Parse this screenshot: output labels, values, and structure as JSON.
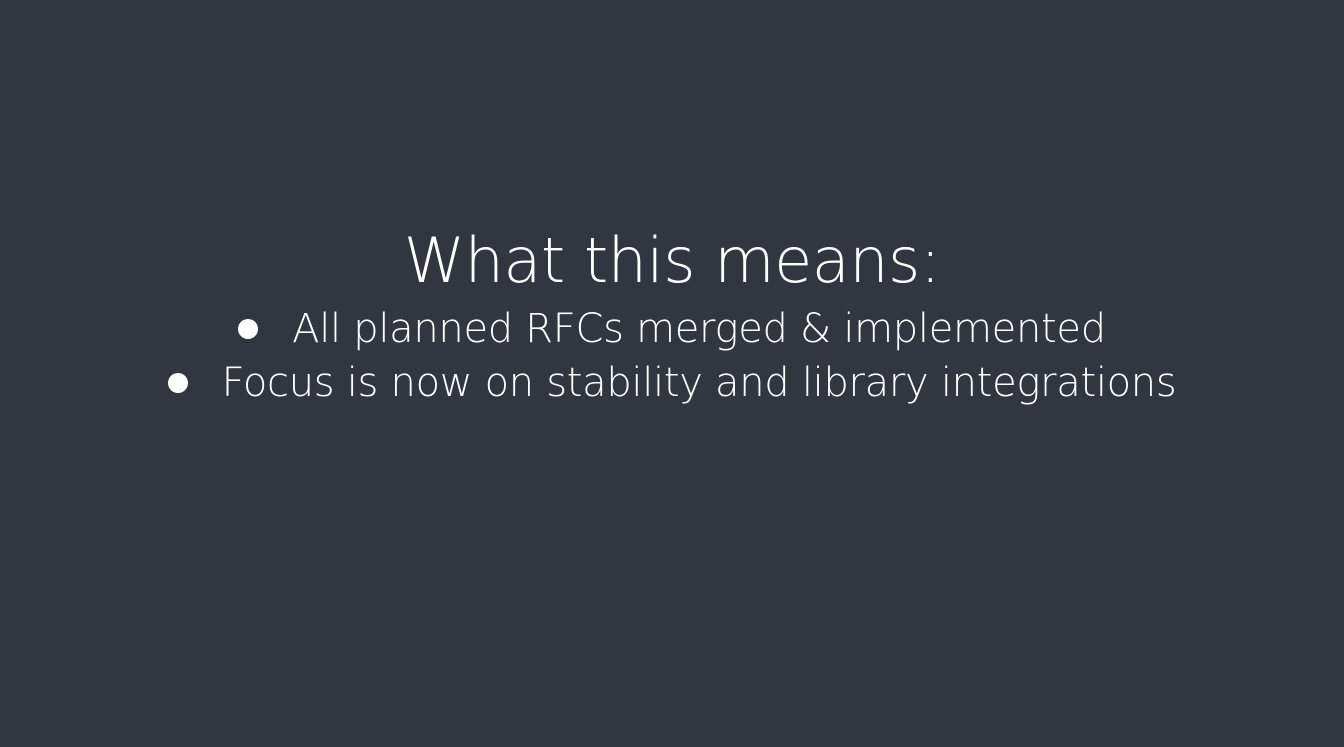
{
  "slide": {
    "title": "What this means:",
    "bullets": [
      "All planned RFCs merged & implemented",
      "Focus is now on stability and library integrations"
    ]
  },
  "colors": {
    "background": "#323641",
    "text": "#ffffff"
  },
  "icons": {
    "bullet": "bullet-dot-icon"
  }
}
